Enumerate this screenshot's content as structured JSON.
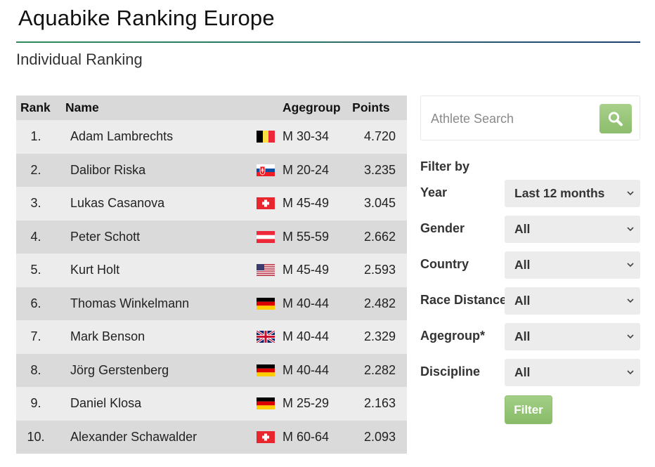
{
  "header": {
    "title": "Aquabike Ranking Europe",
    "subtitle": "Individual Ranking",
    "rule_colors": [
      "#2f8a57",
      "#1f3f73"
    ]
  },
  "table": {
    "headers": {
      "rank": "Rank",
      "name": "Name",
      "agegroup": "Agegroup",
      "points": "Points"
    },
    "rows": [
      {
        "rank": "1.",
        "name": "Adam Lambrechts",
        "flag": "belgium-flag-icon",
        "agegroup": "M 30-34",
        "points": "4.720"
      },
      {
        "rank": "2.",
        "name": "Dalibor Riska",
        "flag": "slovakia-flag-icon",
        "agegroup": "M 20-24",
        "points": "3.235"
      },
      {
        "rank": "3.",
        "name": "Lukas Casanova",
        "flag": "switzerland-flag-icon",
        "agegroup": "M 45-49",
        "points": "3.045"
      },
      {
        "rank": "4.",
        "name": "Peter Schott",
        "flag": "austria-flag-icon",
        "agegroup": "M 55-59",
        "points": "2.662"
      },
      {
        "rank": "5.",
        "name": "Kurt Holt",
        "flag": "usa-flag-icon",
        "agegroup": "M 45-49",
        "points": "2.593"
      },
      {
        "rank": "6.",
        "name": "Thomas Winkelmann",
        "flag": "germany-flag-icon",
        "agegroup": "M 40-44",
        "points": "2.482"
      },
      {
        "rank": "7.",
        "name": "Mark Benson",
        "flag": "united-kingdom-flag-icon",
        "agegroup": "M 40-44",
        "points": "2.329"
      },
      {
        "rank": "8.",
        "name": "Jörg Gerstenberg",
        "flag": "germany-flag-icon",
        "agegroup": "M 40-44",
        "points": "2.282"
      },
      {
        "rank": "9.",
        "name": "Daniel Klosa",
        "flag": "germany-flag-icon",
        "agegroup": "M 25-29",
        "points": "2.163"
      },
      {
        "rank": "10.",
        "name": "Alexander Schawalder",
        "flag": "switzerland-flag-icon",
        "agegroup": "M 60-64",
        "points": "2.093"
      }
    ]
  },
  "search": {
    "placeholder": "Athlete Search",
    "button_icon": "search-icon",
    "button_color": "#9bc97d"
  },
  "filters": {
    "heading": "Filter by",
    "items": [
      {
        "label": "Year",
        "value": "Last 12 months"
      },
      {
        "label": "Gender",
        "value": "All"
      },
      {
        "label": "Country",
        "value": "All"
      },
      {
        "label": "Race Distance",
        "value": "All"
      },
      {
        "label": "Agegroup*",
        "value": "All"
      },
      {
        "label": "Discipline",
        "value": "All"
      }
    ],
    "submit_label": "Filter"
  }
}
